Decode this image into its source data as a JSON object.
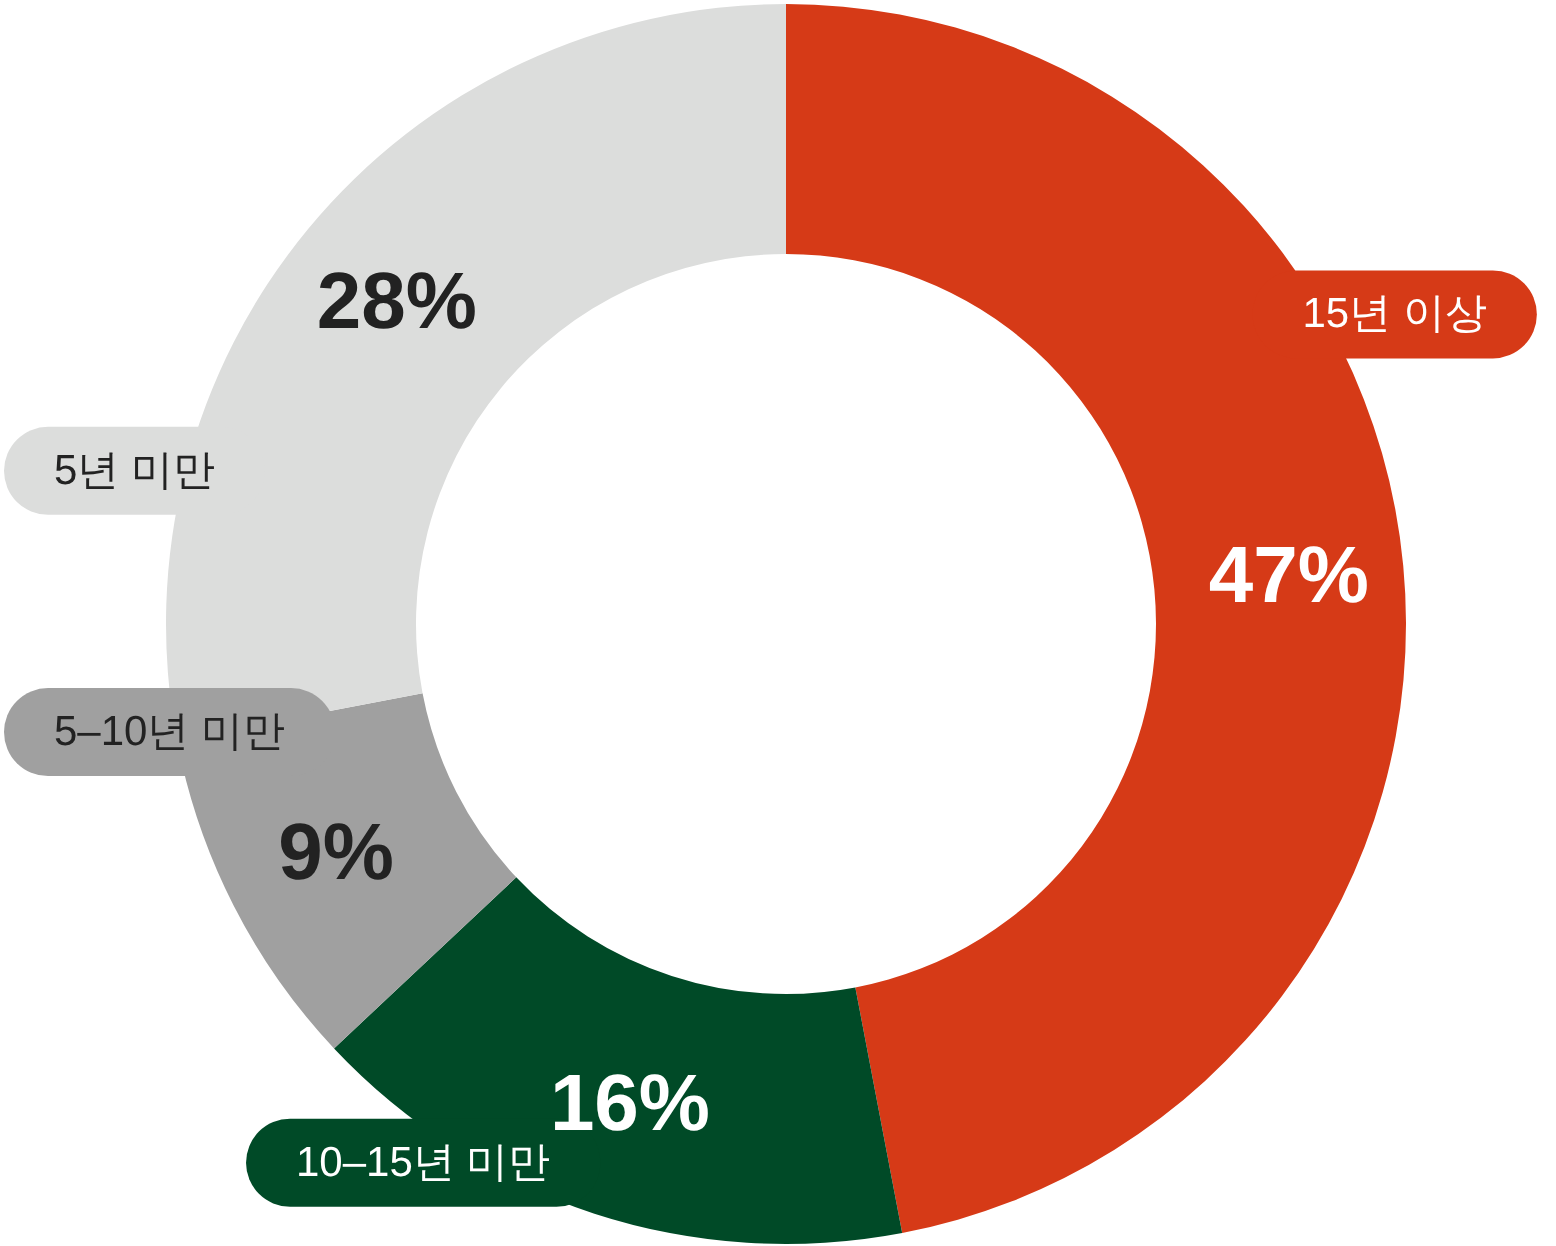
{
  "chart_data": {
    "type": "donut",
    "categories": [
      "15년 이상",
      "10–15년 미만",
      "5–10년 미만",
      "5년 미만"
    ],
    "values": [
      47,
      16,
      9,
      28
    ],
    "value_labels": [
      "47%",
      "16%",
      "9%",
      "28%"
    ],
    "colors": [
      "#d63a17",
      "#004a27",
      "#a0a0a0",
      "#dcdddc"
    ]
  }
}
